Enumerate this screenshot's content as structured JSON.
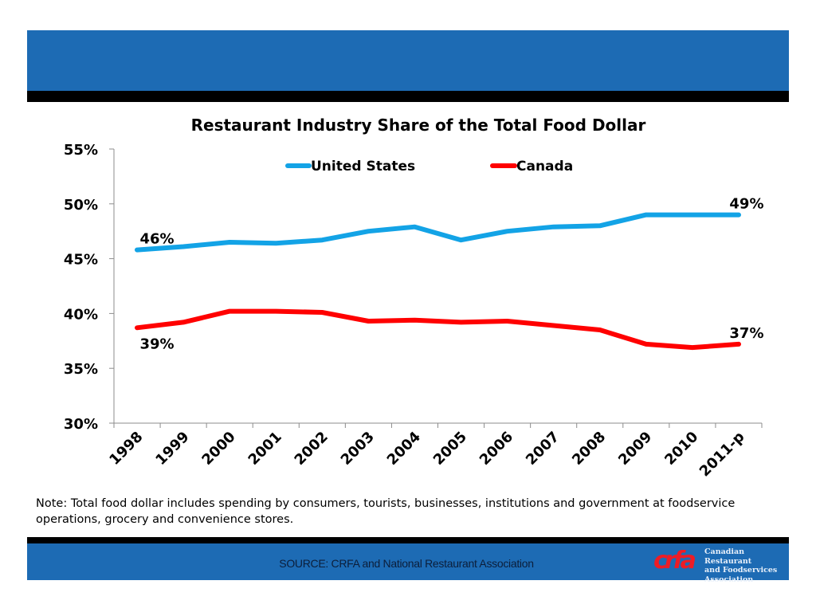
{
  "slide": {
    "note": "Note:  Total food dollar includes spending by consumers, tourists, businesses, institutions and government at foodservice operations, grocery and convenience stores.",
    "source": "SOURCE:  CRFA and National Restaurant Association",
    "logo": {
      "mark": "crfa",
      "lines": [
        "Canadian Restaurant",
        "and Foodservices",
        "Association"
      ]
    },
    "colors": {
      "band": "#1d6bb4",
      "us_line": "#13a3e6",
      "canada_line": "#ff0000"
    }
  },
  "chart_data": {
    "type": "line",
    "title": "Restaurant Industry Share of the Total Food Dollar",
    "xlabel": "",
    "ylabel": "",
    "categories": [
      "1998",
      "1999",
      "2000",
      "2001",
      "2002",
      "2003",
      "2004",
      "2005",
      "2006",
      "2007",
      "2008",
      "2009",
      "2010",
      "2011-p"
    ],
    "ylim": [
      30,
      55
    ],
    "yticks": [
      30,
      35,
      40,
      45,
      50,
      55
    ],
    "ytick_labels": [
      "30%",
      "35%",
      "40%",
      "45%",
      "50%",
      "55%"
    ],
    "grid": false,
    "legend": {
      "placement": "top-center",
      "entries": [
        "United States",
        "Canada"
      ]
    },
    "series": [
      {
        "name": "United States",
        "color": "#13a3e6",
        "values": [
          45.8,
          46.1,
          46.5,
          46.4,
          46.7,
          47.5,
          47.9,
          46.7,
          47.5,
          47.9,
          48.0,
          49.0,
          49.0,
          49.0
        ],
        "annotations": [
          {
            "index": 0,
            "text": "46%",
            "position": "above"
          },
          {
            "index": 13,
            "text": "49%",
            "position": "above"
          }
        ]
      },
      {
        "name": "Canada",
        "color": "#ff0000",
        "values": [
          38.7,
          39.2,
          40.2,
          40.2,
          40.1,
          39.3,
          39.4,
          39.2,
          39.3,
          38.9,
          38.5,
          37.2,
          36.9,
          37.2
        ],
        "annotations": [
          {
            "index": 0,
            "text": "39%",
            "position": "below"
          },
          {
            "index": 13,
            "text": "37%",
            "position": "above"
          }
        ]
      }
    ]
  }
}
